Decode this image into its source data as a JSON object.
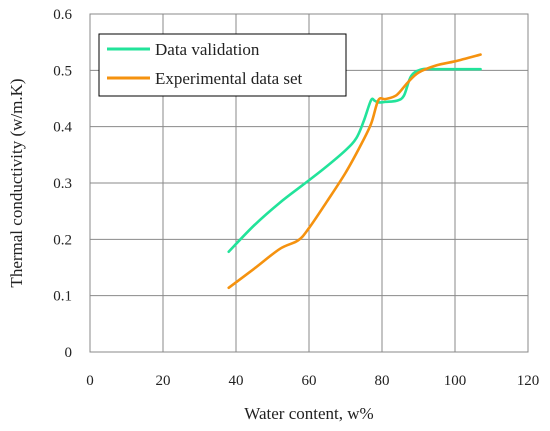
{
  "chart_data": {
    "type": "line",
    "xlabel": "Water content, w%",
    "ylabel": "Thermal conductivity (w/m.K)",
    "xlim": [
      0,
      120
    ],
    "ylim": [
      0,
      0.6
    ],
    "x_ticks": [
      "0",
      "20",
      "40",
      "60",
      "80",
      "100",
      "120"
    ],
    "y_ticks": [
      "0",
      "0.1",
      "0.2",
      "0.3",
      "0.4",
      "0.5",
      "0.6"
    ],
    "grid": true,
    "legend_position": "top-left",
    "series": [
      {
        "name": "Data validation",
        "color": "#22e39a",
        "points": [
          [
            38,
            0.178
          ],
          [
            45,
            0.225
          ],
          [
            52,
            0.265
          ],
          [
            58,
            0.295
          ],
          [
            64,
            0.325
          ],
          [
            70,
            0.358
          ],
          [
            73,
            0.38
          ],
          [
            75,
            0.41
          ],
          [
            77,
            0.447
          ],
          [
            78,
            0.446
          ],
          [
            79,
            0.443
          ],
          [
            81,
            0.444
          ],
          [
            84,
            0.446
          ],
          [
            86,
            0.455
          ],
          [
            88,
            0.49
          ],
          [
            91,
            0.502
          ],
          [
            95,
            0.502
          ],
          [
            100,
            0.502
          ],
          [
            107,
            0.502
          ]
        ]
      },
      {
        "name": "Experimental data set",
        "color": "#f5920f",
        "points": [
          [
            38,
            0.114
          ],
          [
            45,
            0.148
          ],
          [
            52,
            0.183
          ],
          [
            57,
            0.198
          ],
          [
            60,
            0.22
          ],
          [
            65,
            0.268
          ],
          [
            70,
            0.318
          ],
          [
            74,
            0.365
          ],
          [
            77,
            0.405
          ],
          [
            79,
            0.447
          ],
          [
            81,
            0.449
          ],
          [
            84,
            0.456
          ],
          [
            87,
            0.478
          ],
          [
            90,
            0.496
          ],
          [
            95,
            0.509
          ],
          [
            100,
            0.516
          ],
          [
            107,
            0.528
          ]
        ]
      }
    ]
  }
}
